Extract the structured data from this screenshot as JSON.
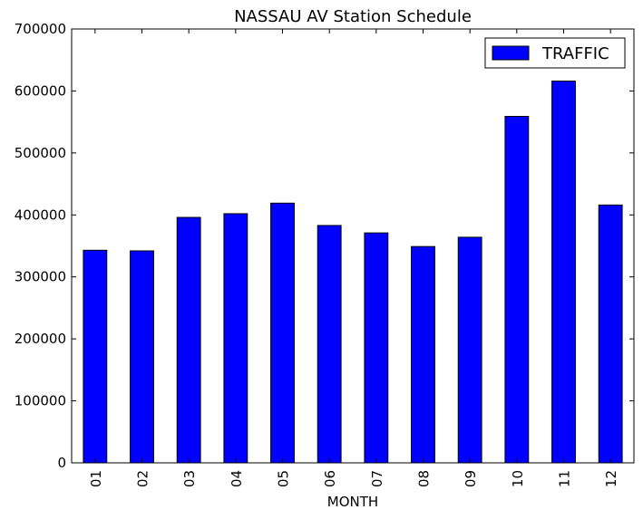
{
  "chart_data": {
    "type": "bar",
    "title": "NASSAU AV Station Schedule",
    "xlabel": "MONTH",
    "ylabel": "",
    "categories": [
      "01",
      "02",
      "03",
      "04",
      "05",
      "06",
      "07",
      "08",
      "09",
      "10",
      "11",
      "12"
    ],
    "series": [
      {
        "name": "TRAFFIC",
        "color": "#0000ff",
        "values": [
          343000,
          342000,
          396000,
          402000,
          419000,
          383000,
          371000,
          349000,
          364000,
          559000,
          616000,
          416000
        ]
      }
    ],
    "ylim": [
      0,
      700000
    ],
    "yticks": [
      0,
      100000,
      200000,
      300000,
      400000,
      500000,
      600000,
      700000
    ],
    "ytick_labels": [
      "0",
      "100000",
      "200000",
      "300000",
      "400000",
      "500000",
      "600000",
      "700000"
    ],
    "grid": false,
    "legend_position": "top-right"
  }
}
